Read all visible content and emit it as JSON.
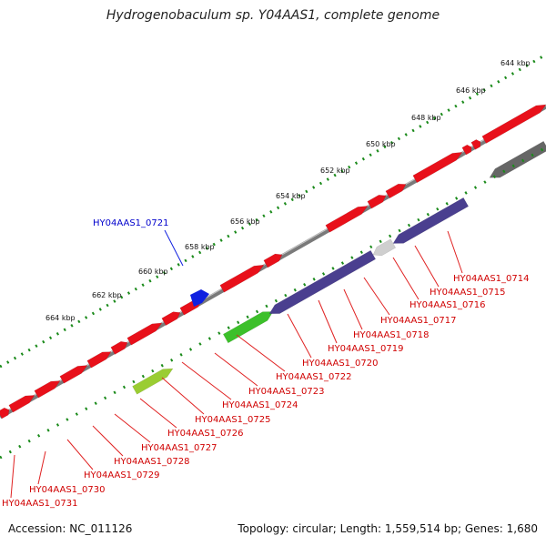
{
  "title": "Hydrogenobaculum sp. Y04AAS1, complete genome",
  "footer": {
    "accession": "Accession: NC_011126",
    "summary": "Topology: circular; Length: 1,559,514 bp; Genes: 1,680"
  },
  "scale_labels": [
    "644 kbp",
    "646 kbp",
    "648 kbp",
    "650 kbp",
    "652 kbp",
    "654 kbp",
    "656 kbp",
    "658 kbp",
    "660 kbp",
    "662 kbp",
    "664 kbp"
  ],
  "highlighted_gene": "HY04AAS1_0721",
  "gene_labels": [
    "HY04AAS1_0714",
    "HY04AAS1_0715",
    "HY04AAS1_0716",
    "HY04AAS1_0717",
    "HY04AAS1_0718",
    "HY04AAS1_0719",
    "HY04AAS1_0720",
    "HY04AAS1_0722",
    "HY04AAS1_0723",
    "HY04AAS1_0724",
    "HY04AAS1_0725",
    "HY04AAS1_0726",
    "HY04AAS1_0727",
    "HY04AAS1_0728",
    "HY04AAS1_0729",
    "HY04AAS1_0730",
    "HY04AAS1_0731"
  ],
  "colors": {
    "forward_gene": "#e8101a",
    "reverse_gene": "#e8101a",
    "purple_gene": "#4a3f8f",
    "green_gene": "#3cc02a",
    "yellow_green_gene": "#9acd32",
    "gray_gene": "#666666",
    "light_gray_gene": "#cfcfcf",
    "blue_gene": "#1020e0",
    "backbone": "#8a8a8a",
    "tick": "#1a8a1a",
    "label": "#d00000",
    "highlight_label": "#0000cc"
  }
}
